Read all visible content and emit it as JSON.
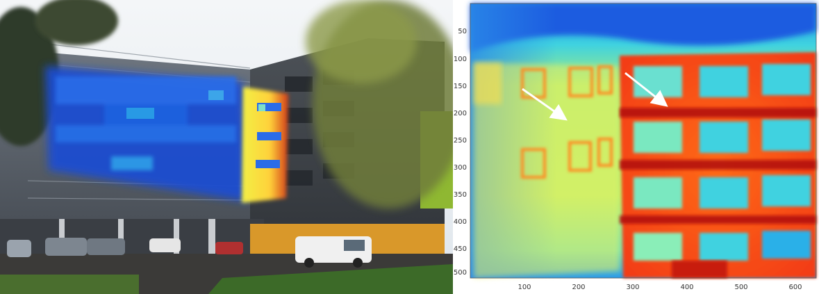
{
  "photo": {
    "description_icons": [
      "building",
      "trees",
      "van",
      "cars"
    ]
  },
  "thermal": {
    "y_ticks": [
      "50",
      "100",
      "150",
      "200",
      "250",
      "300",
      "350",
      "400",
      "450",
      "500"
    ],
    "x_ticks": [
      "100",
      "200",
      "300",
      "400",
      "500",
      "600"
    ],
    "y_range": [
      0,
      512
    ],
    "x_range": [
      0,
      640
    ],
    "colormap": [
      "#0a2bb8",
      "#1e7fe6",
      "#3fd2e0",
      "#b8f070",
      "#ffe94a",
      "#ff9a20",
      "#e02010",
      "#9a0a0a"
    ]
  }
}
